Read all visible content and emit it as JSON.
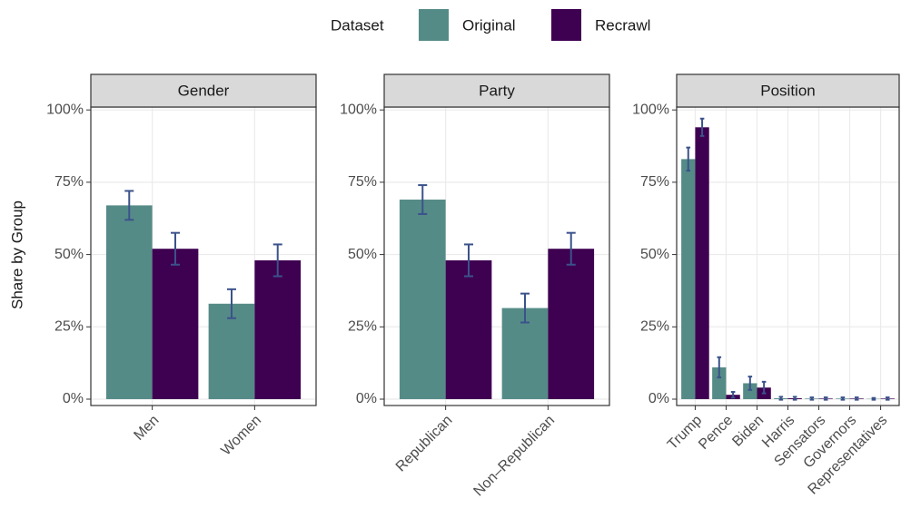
{
  "chart_data": [
    {
      "type": "bar",
      "legend_title": "Dataset",
      "y_label": "Share by Group",
      "strip": "Gender",
      "categories": [
        "Men",
        "Women"
      ],
      "series": [
        {
          "name": "Original",
          "color": "#558b87",
          "values": [
            67,
            33
          ],
          "errors": [
            5,
            5
          ]
        },
        {
          "name": "Recrawl",
          "color": "#3e0051",
          "values": [
            52,
            48
          ],
          "errors": [
            5.5,
            5.5
          ]
        }
      ],
      "ylim": [
        -2.2,
        101
      ],
      "yticks": [
        {
          "value": 0,
          "label": "0%"
        },
        {
          "value": 25,
          "label": "25%"
        },
        {
          "value": 50,
          "label": "50%"
        },
        {
          "value": 75,
          "label": "75%"
        },
        {
          "value": 100,
          "label": "100%"
        }
      ],
      "grid": true
    },
    {
      "type": "bar",
      "strip": "Party",
      "categories": [
        "Republican",
        "Non–Republican"
      ],
      "series": [
        {
          "name": "Original",
          "color": "#558b87",
          "values": [
            69,
            31.5
          ],
          "errors": [
            5,
            5
          ]
        },
        {
          "name": "Recrawl",
          "color": "#3e0051",
          "values": [
            48,
            52
          ],
          "errors": [
            5.5,
            5.5
          ]
        }
      ],
      "ylim": [
        -2.2,
        101
      ],
      "yticks": [
        {
          "value": 0,
          "label": "0%"
        },
        {
          "value": 25,
          "label": "25%"
        },
        {
          "value": 50,
          "label": "50%"
        },
        {
          "value": 75,
          "label": "75%"
        },
        {
          "value": 100,
          "label": "100%"
        }
      ],
      "grid": true
    },
    {
      "type": "bar",
      "strip": "Position",
      "categories": [
        "Trump",
        "Pence",
        "Biden",
        "Harris",
        "Sensators",
        "Governors",
        "Representatives"
      ],
      "series": [
        {
          "name": "Original",
          "color": "#558b87",
          "values": [
            83,
            11,
            5.5,
            0.3,
            0.2,
            0.2,
            0.1
          ],
          "errors": [
            4,
            3.5,
            2.3,
            0.5,
            0.4,
            0.4,
            0.3
          ]
        },
        {
          "name": "Recrawl",
          "color": "#3e0051",
          "values": [
            94,
            1.5,
            4,
            0.3,
            0.2,
            0.2,
            0.2
          ],
          "errors": [
            3,
            1,
            2,
            0.5,
            0.4,
            0.4,
            0.4
          ]
        }
      ],
      "ylim": [
        -2.2,
        101
      ],
      "yticks": [
        {
          "value": 0,
          "label": "0%"
        },
        {
          "value": 25,
          "label": "25%"
        },
        {
          "value": 50,
          "label": "50%"
        },
        {
          "value": 75,
          "label": "75%"
        },
        {
          "value": 100,
          "label": "100%"
        }
      ],
      "grid": true
    }
  ]
}
